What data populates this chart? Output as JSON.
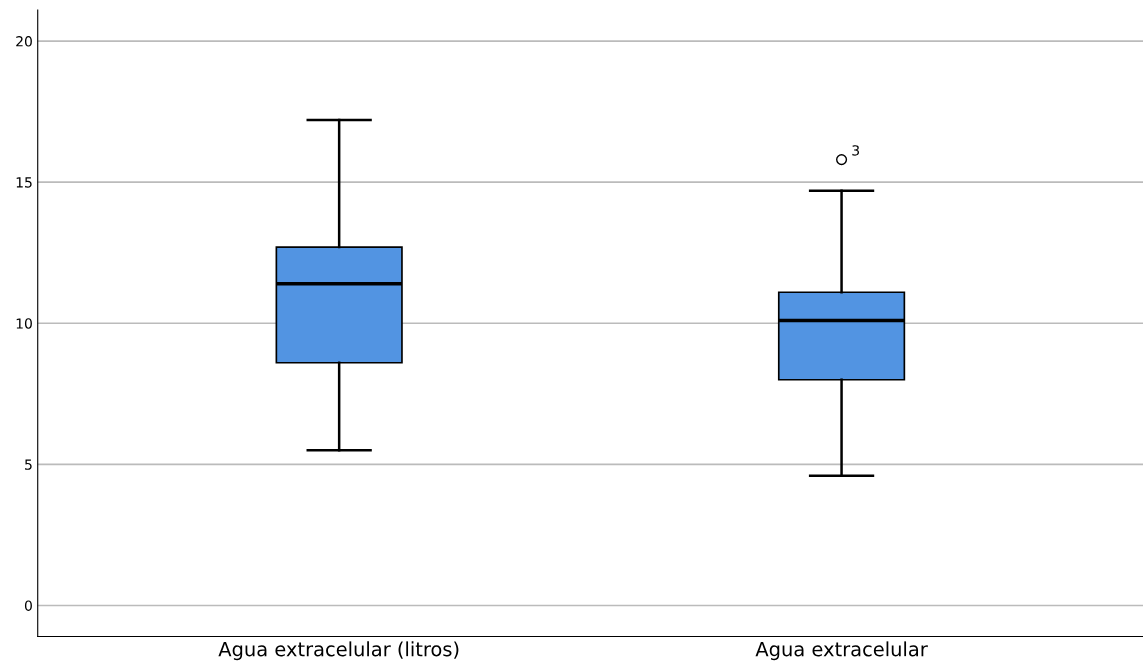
{
  "chart_data": {
    "type": "box",
    "categories": [
      "Agua extracelular (litros)",
      "Agua extracelular"
    ],
    "boxes": [
      {
        "low": 5.5,
        "q1": 8.6,
        "median": 11.4,
        "q3": 12.7,
        "high": 17.2
      },
      {
        "low": 4.6,
        "q1": 8.0,
        "median": 10.1,
        "q3": 11.1,
        "high": 14.7,
        "outliers": [
          15.8
        ]
      }
    ],
    "color": "#5294e2",
    "ylim": [
      -1.1,
      21.1
    ],
    "yticks": [
      0,
      5,
      10,
      15,
      20
    ],
    "grid": "y",
    "annotations": [
      "3"
    ]
  }
}
